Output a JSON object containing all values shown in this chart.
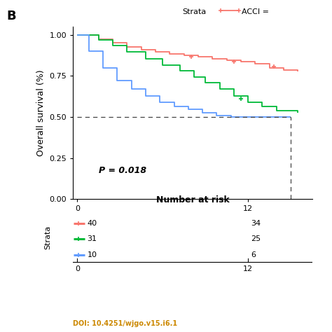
{
  "title_label": "B",
  "ylabel": "Overall survival (%)",
  "ylim": [
    0.0,
    1.05
  ],
  "xlim": [
    -0.3,
    16.5
  ],
  "yticks": [
    0.0,
    0.25,
    0.5,
    0.75,
    1.0
  ],
  "xticks_main": [
    0,
    12
  ],
  "p_value_text": "P = 0.018",
  "dashed_line_x": 15.0,
  "number_at_risk_title": "Number at risk",
  "risk_rows": [
    {
      "n0": "40",
      "n12": "34"
    },
    {
      "n0": "31",
      "n12": "25"
    },
    {
      "n0": "10",
      "n12": "6"
    }
  ],
  "colors": {
    "red": "#F8766D",
    "green": "#00BA38",
    "blue": "#619CFF"
  },
  "km_red": {
    "times": [
      0,
      1.5,
      2.5,
      3.5,
      4.5,
      5.5,
      6.5,
      7.5,
      8.5,
      9.5,
      10.5,
      11.5,
      12.5,
      13.5,
      14.5,
      15.5
    ],
    "surv": [
      1.0,
      0.975,
      0.95,
      0.925,
      0.91,
      0.895,
      0.885,
      0.875,
      0.865,
      0.855,
      0.845,
      0.835,
      0.825,
      0.8,
      0.785,
      0.775
    ],
    "censors_t": [
      8.0,
      11.0,
      13.8
    ],
    "censors_s": [
      0.868,
      0.838,
      0.808
    ]
  },
  "km_green": {
    "times": [
      0,
      1.5,
      2.5,
      3.5,
      4.8,
      6.0,
      7.2,
      8.2,
      9.0,
      10.0,
      11.0,
      12.0,
      13.0,
      14.0,
      15.5
    ],
    "surv": [
      1.0,
      0.97,
      0.935,
      0.895,
      0.855,
      0.815,
      0.78,
      0.745,
      0.71,
      0.67,
      0.63,
      0.59,
      0.565,
      0.54,
      0.525
    ],
    "censors_t": [
      11.5
    ],
    "censors_s": [
      0.61
    ]
  },
  "km_blue": {
    "times": [
      0,
      0.8,
      1.8,
      2.8,
      3.8,
      4.8,
      5.8,
      6.8,
      7.8,
      8.8,
      9.8,
      10.8,
      12.0,
      15.0
    ],
    "surv": [
      1.0,
      0.9,
      0.8,
      0.72,
      0.67,
      0.63,
      0.59,
      0.565,
      0.545,
      0.525,
      0.51,
      0.5,
      0.5,
      0.5
    ],
    "censors_t": [],
    "censors_s": []
  },
  "font_size_B": 13,
  "font_size_label": 9,
  "font_size_tick": 8,
  "font_size_legend": 8,
  "font_size_risk": 8,
  "font_size_risk_title": 9,
  "font_size_pval": 9
}
